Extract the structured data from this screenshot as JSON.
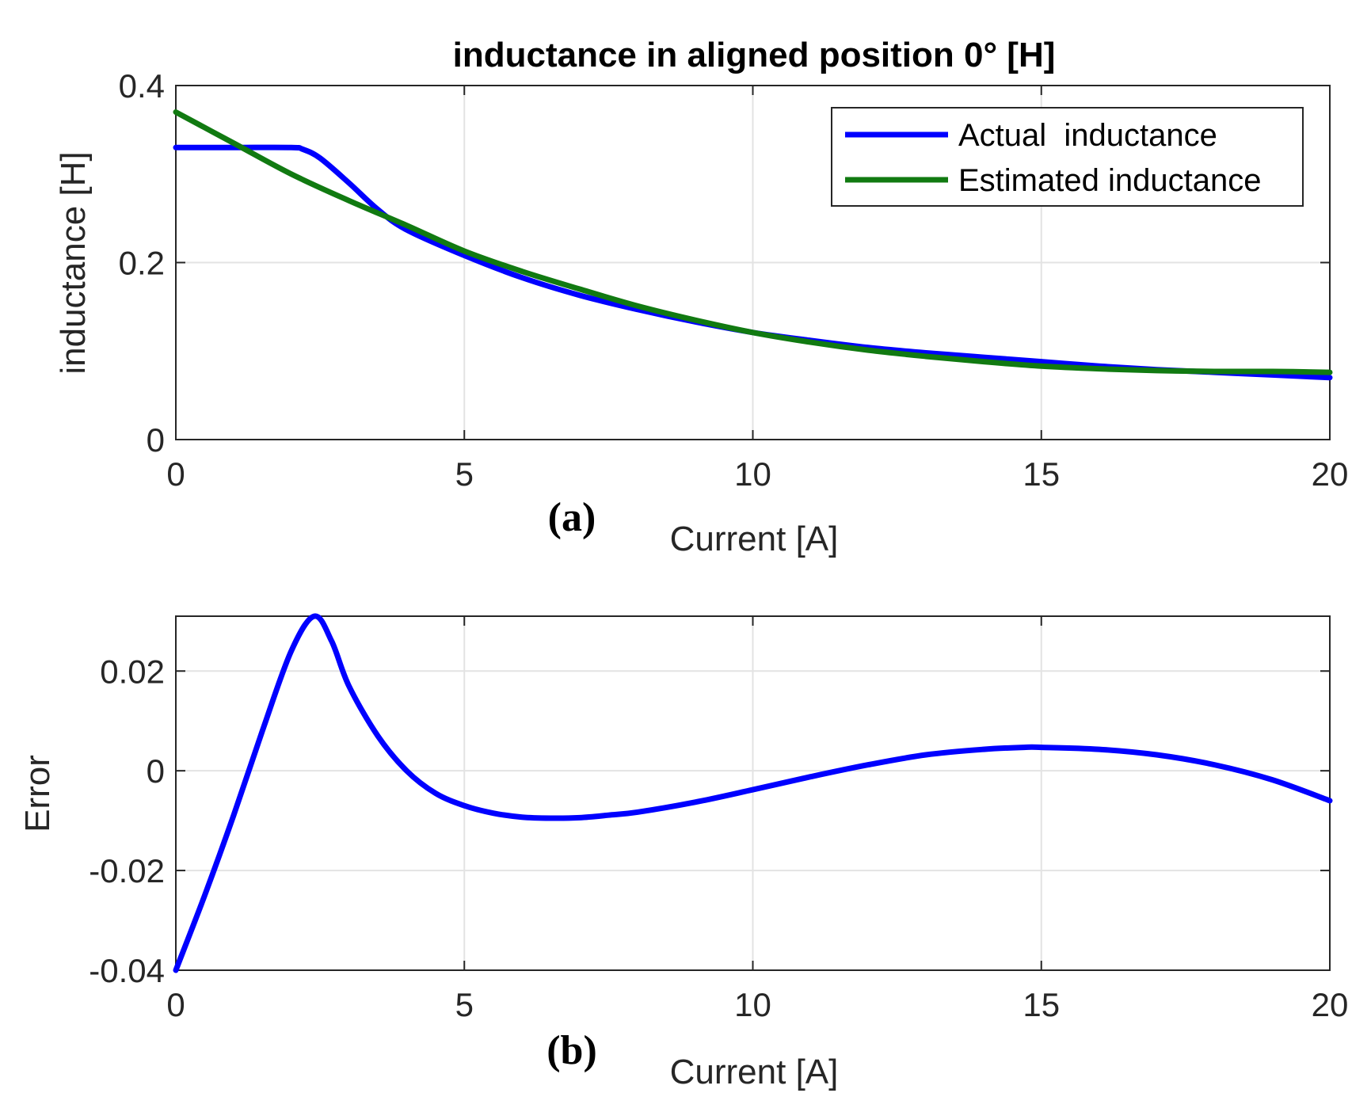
{
  "chart_data": [
    {
      "type": "line",
      "panel_label": "(a)",
      "title": "inductance in aligned position 0° [H]",
      "xlabel": "Current [A]",
      "ylabel": "inductance [H]",
      "xlim": [
        0,
        20
      ],
      "ylim": [
        0,
        0.4
      ],
      "xticks": [
        0,
        5,
        10,
        15,
        20
      ],
      "xtick_labels": [
        "0",
        "5",
        "10",
        "15",
        "20"
      ],
      "yticks": [
        0,
        0.2,
        0.4
      ],
      "ytick_labels": [
        "0",
        "0.2",
        "0.4"
      ],
      "grid": true,
      "legend_position": "top-right",
      "series": [
        {
          "name": "Actual  inductance",
          "color": "#0000ff",
          "x": [
            0,
            1,
            2,
            2.2,
            2.5,
            3,
            3.5,
            4,
            5,
            6,
            7,
            8,
            9,
            10,
            11,
            12,
            13,
            14,
            15,
            16,
            17,
            18,
            19,
            20
          ],
          "y": [
            0.33,
            0.33,
            0.33,
            0.328,
            0.318,
            0.29,
            0.26,
            0.237,
            0.208,
            0.183,
            0.163,
            0.147,
            0.133,
            0.121,
            0.112,
            0.104,
            0.098,
            0.093,
            0.088,
            0.083,
            0.079,
            0.076,
            0.073,
            0.07
          ]
        },
        {
          "name": "Estimated inductance",
          "color": "#117a11",
          "x": [
            0,
            1,
            2,
            3,
            4,
            5,
            6,
            7,
            8,
            9,
            10,
            11,
            12,
            13,
            14,
            15,
            16,
            17,
            18,
            19,
            20
          ],
          "y": [
            0.37,
            0.335,
            0.3,
            0.27,
            0.242,
            0.213,
            0.19,
            0.17,
            0.151,
            0.135,
            0.121,
            0.11,
            0.101,
            0.094,
            0.088,
            0.083,
            0.08,
            0.078,
            0.077,
            0.077,
            0.076
          ]
        }
      ]
    },
    {
      "type": "line",
      "panel_label": "(b)",
      "xlabel": "Current [A]",
      "ylabel": "Error",
      "xlim": [
        0,
        20
      ],
      "ylim": [
        -0.04,
        0.031
      ],
      "xticks": [
        0,
        5,
        10,
        15,
        20
      ],
      "xtick_labels": [
        "0",
        "5",
        "10",
        "15",
        "20"
      ],
      "yticks": [
        -0.04,
        -0.02,
        0,
        0.02
      ],
      "ytick_labels": [
        "-0.04",
        "-0.02",
        "0",
        "0.02"
      ],
      "grid": true,
      "series": [
        {
          "name": "Error",
          "color": "#0000ff",
          "x": [
            0,
            0.5,
            1,
            1.5,
            2,
            2.4,
            2.7,
            3,
            3.5,
            4,
            4.5,
            5,
            5.5,
            6,
            6.5,
            7,
            7.5,
            8,
            9,
            10,
            11,
            12,
            13,
            14,
            14.7,
            15,
            16,
            17,
            18,
            19,
            20
          ],
          "y": [
            -0.04,
            -0.025,
            -0.009,
            0.008,
            0.024,
            0.031,
            0.026,
            0.017,
            0.007,
            0.0,
            -0.0045,
            -0.007,
            -0.0085,
            -0.0093,
            -0.0095,
            -0.0094,
            -0.0089,
            -0.0083,
            -0.0063,
            -0.0038,
            -0.0012,
            0.0012,
            0.0032,
            0.0043,
            0.0047,
            0.0047,
            0.0043,
            0.0032,
            0.0012,
            -0.0018,
            -0.006
          ]
        }
      ]
    }
  ]
}
